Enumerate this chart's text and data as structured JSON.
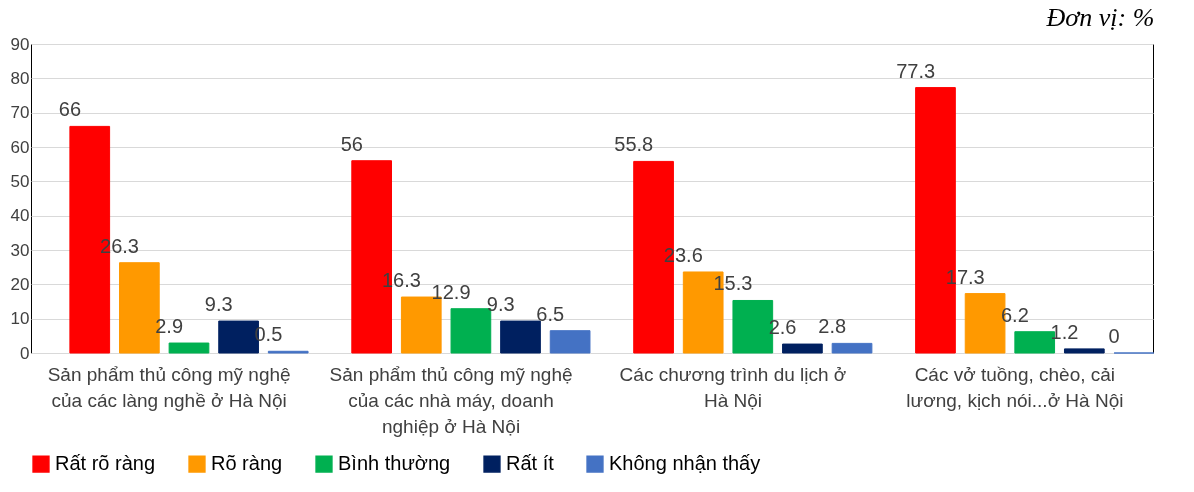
{
  "chart_data": {
    "type": "bar",
    "title": "Đơn vị: %",
    "categories": [
      "Sản phẩm thủ công mỹ nghệ của các làng nghề ở Hà Nội",
      "Sản phẩm thủ công mỹ nghệ của các nhà máy, doanh nghiệp ở Hà Nội",
      "Các chương trình du lịch ở Hà Nội",
      "Các vở tuồng, chèo, cải lương, kịch nói...ở Hà Nội"
    ],
    "series": [
      {
        "name": "Rất rõ ràng",
        "color": "#ff0000",
        "values": [
          66,
          56,
          55.8,
          77.3
        ]
      },
      {
        "name": "Rõ ràng",
        "color": "#ff9900",
        "values": [
          26.3,
          16.3,
          23.6,
          17.3
        ]
      },
      {
        "name": "Bình thường",
        "color": "#00b050",
        "values": [
          2.9,
          12.9,
          15.3,
          6.2
        ]
      },
      {
        "name": "Rất ít",
        "color": "#002060",
        "values": [
          9.3,
          9.3,
          2.6,
          1.2
        ]
      },
      {
        "name": "Không nhận thấy",
        "color": "#4472c4",
        "values": [
          0.5,
          6.5,
          2.8,
          0
        ]
      }
    ],
    "ylim": [
      0,
      90
    ],
    "yticks": [
      0,
      10,
      20,
      30,
      40,
      50,
      60,
      70,
      80,
      90
    ],
    "grid": "y",
    "legend": "bottom",
    "data_labels": true
  }
}
